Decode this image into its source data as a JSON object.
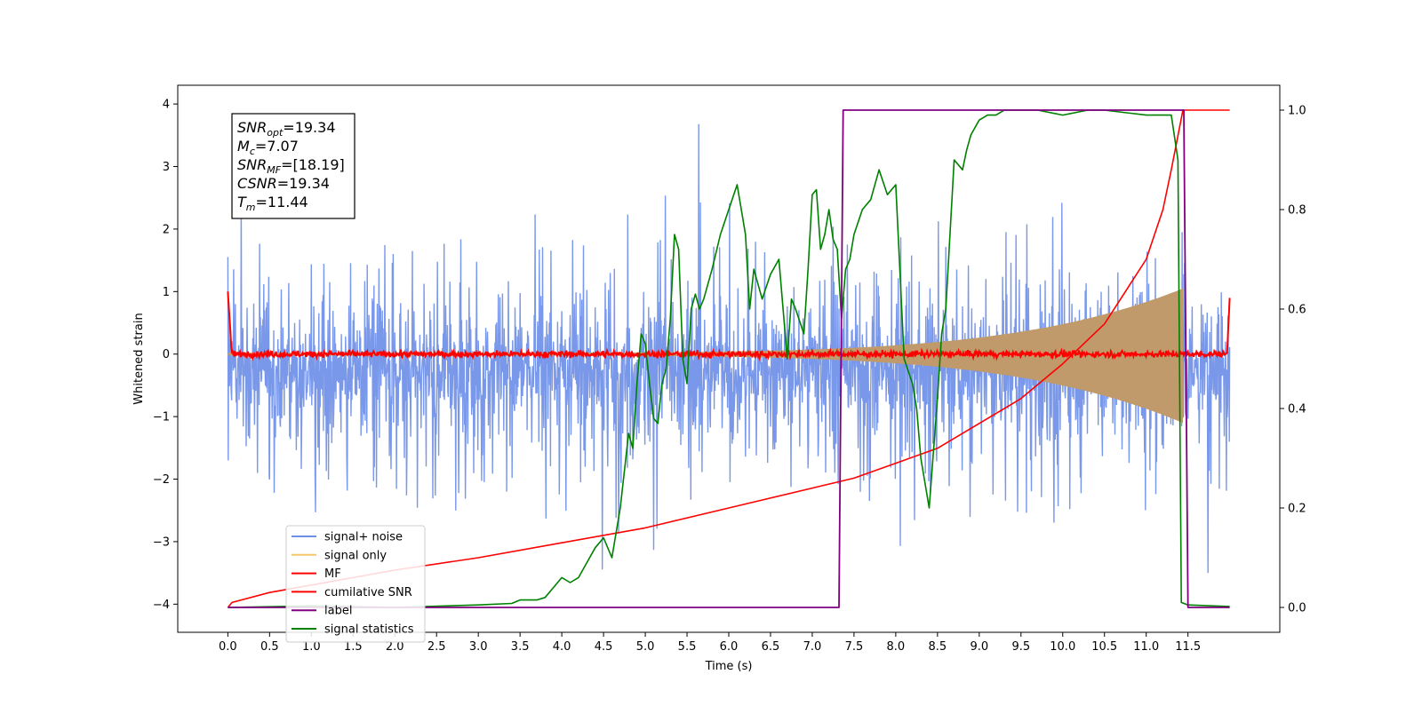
{
  "chart_data": {
    "type": "line",
    "xlabel": "Time (s)",
    "ylabel": "Whitened strain",
    "xlim": [
      -0.6,
      12.6
    ],
    "ylim_left": [
      -4.45,
      4.3
    ],
    "ylim_right": [
      -0.05,
      1.05
    ],
    "x_ticks": [
      "0.0",
      "0.5",
      "1.0",
      "1.5",
      "2.0",
      "2.5",
      "3.0",
      "3.5",
      "4.0",
      "4.5",
      "5.0",
      "5.5",
      "6.0",
      "6.5",
      "7.0",
      "7.5",
      "8.0",
      "8.5",
      "9.0",
      "9.5",
      "10.0",
      "10.5",
      "11.0",
      "11.5"
    ],
    "y_ticks_left": [
      "−4",
      "−3",
      "−2",
      "−1",
      "0",
      "1",
      "2",
      "3",
      "4"
    ],
    "y_ticks_right": [
      "0.0",
      "0.2",
      "0.4",
      "0.6",
      "0.8",
      "1.0"
    ],
    "grid": false,
    "legend_position": "lower-left",
    "annotation": {
      "lines": [
        {
          "base": "SNR",
          "sub": "opt",
          "value": "=19.34"
        },
        {
          "base": "M",
          "sub": "c",
          "value": "=7.07"
        },
        {
          "base": "SNR",
          "sub": "MF",
          "value": "=[18.19]"
        },
        {
          "base": "CSNR",
          "sub": "",
          "value": "=19.34"
        },
        {
          "base": "T",
          "sub": "m",
          "value": "=11.44"
        }
      ]
    },
    "series": [
      {
        "name": "signal+ noise",
        "color": "#6f8fe8",
        "axis": "left",
        "x_range": [
          0.0,
          12.0
        ],
        "typical_range": [
          -1.6,
          1.6
        ],
        "peak_range": [
          -3.5,
          3.9
        ]
      },
      {
        "name": "signal only",
        "color": "#f5c76a",
        "axis": "left",
        "x_range": [
          0.0,
          11.44
        ],
        "envelope_start": 0.02,
        "envelope_end": 1.05
      },
      {
        "name": "MF",
        "color": "#ff0000",
        "axis": "left",
        "x_range": [
          0.0,
          12.0
        ],
        "baseline": 0.0,
        "spikes": [
          {
            "x": 0.0,
            "y": 1.0
          },
          {
            "x": 12.0,
            "y": 0.9
          }
        ]
      },
      {
        "name": "cumilative SNR",
        "color": "#ff0000",
        "axis": "right",
        "x": [
          0.0,
          0.05,
          0.5,
          1.0,
          2.0,
          3.0,
          4.0,
          5.0,
          6.0,
          7.0,
          7.5,
          8.0,
          8.5,
          9.0,
          9.5,
          10.0,
          10.5,
          11.0,
          11.2,
          11.3,
          11.44,
          12.0
        ],
        "values": [
          0.0,
          0.01,
          0.03,
          0.045,
          0.075,
          0.1,
          0.13,
          0.16,
          0.2,
          0.24,
          0.26,
          0.29,
          0.32,
          0.37,
          0.42,
          0.49,
          0.57,
          0.7,
          0.8,
          0.88,
          1.0,
          1.0
        ]
      },
      {
        "name": "label",
        "color": "#800080",
        "axis": "right",
        "x": [
          0.0,
          7.32,
          7.37,
          11.45,
          11.5,
          12.0
        ],
        "values": [
          0.0,
          0.0,
          1.0,
          1.0,
          0.0,
          0.0
        ]
      },
      {
        "name": "signal statistics",
        "color": "#008000",
        "axis": "right",
        "x": [
          0.0,
          1.0,
          2.0,
          3.0,
          3.4,
          3.5,
          3.7,
          3.8,
          3.9,
          4.0,
          4.1,
          4.2,
          4.3,
          4.4,
          4.5,
          4.6,
          4.7,
          4.8,
          4.85,
          4.9,
          4.95,
          5.0,
          5.05,
          5.1,
          5.15,
          5.2,
          5.25,
          5.3,
          5.35,
          5.4,
          5.45,
          5.5,
          5.55,
          5.6,
          5.65,
          5.7,
          5.8,
          5.9,
          6.0,
          6.1,
          6.2,
          6.25,
          6.3,
          6.4,
          6.5,
          6.6,
          6.7,
          6.75,
          6.8,
          6.9,
          6.95,
          7.0,
          7.05,
          7.1,
          7.15,
          7.2,
          7.25,
          7.3,
          7.35,
          7.4,
          7.45,
          7.5,
          7.6,
          7.7,
          7.8,
          7.9,
          8.0,
          8.1,
          8.2,
          8.25,
          8.3,
          8.4,
          8.5,
          8.55,
          8.6,
          8.7,
          8.8,
          8.85,
          8.9,
          9.0,
          9.1,
          9.2,
          9.3,
          9.4,
          9.5,
          9.7,
          10.0,
          10.3,
          10.5,
          11.0,
          11.3,
          11.38,
          11.42,
          11.5,
          12.0
        ],
        "values": [
          0.0,
          0.003,
          0.0,
          0.005,
          0.008,
          0.015,
          0.015,
          0.02,
          0.04,
          0.06,
          0.05,
          0.06,
          0.09,
          0.12,
          0.14,
          0.1,
          0.2,
          0.35,
          0.32,
          0.45,
          0.55,
          0.53,
          0.45,
          0.38,
          0.37,
          0.45,
          0.48,
          0.58,
          0.75,
          0.72,
          0.5,
          0.45,
          0.6,
          0.63,
          0.6,
          0.62,
          0.68,
          0.75,
          0.8,
          0.85,
          0.75,
          0.6,
          0.68,
          0.62,
          0.67,
          0.7,
          0.5,
          0.62,
          0.6,
          0.55,
          0.68,
          0.83,
          0.84,
          0.72,
          0.75,
          0.8,
          0.74,
          0.72,
          0.58,
          0.68,
          0.7,
          0.75,
          0.8,
          0.82,
          0.88,
          0.83,
          0.85,
          0.5,
          0.45,
          0.4,
          0.3,
          0.2,
          0.42,
          0.55,
          0.6,
          0.9,
          0.88,
          0.92,
          0.95,
          0.98,
          0.99,
          0.99,
          1.0,
          1.0,
          1.0,
          1.0,
          0.99,
          1.0,
          1.0,
          0.99,
          0.99,
          0.9,
          0.01,
          0.005,
          0.002
        ]
      }
    ]
  }
}
